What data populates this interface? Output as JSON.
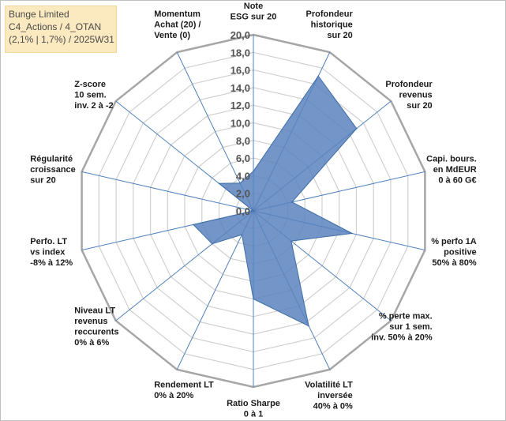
{
  "info": {
    "line1": "Bunge Limited",
    "line2": "C4_Actions / 4_OTAN",
    "line3": "(2,1% | 1,7%) / 2025W31"
  },
  "chart_data": {
    "type": "radar",
    "rmin": 0,
    "rmax": 20,
    "ticks": [
      "0,0",
      "2,0",
      "4,0",
      "6,0",
      "8,0",
      "10,0",
      "12,0",
      "14,0",
      "16,0",
      "18,0",
      "20,0"
    ],
    "axes": [
      [
        "Note",
        "ESG sur 20"
      ],
      [
        "Profondeur",
        "historique",
        "sur 20"
      ],
      [
        "Profondeur",
        "revenus",
        "sur 20"
      ],
      [
        "Capi. bours.",
        "en MdEUR",
        "0 à 60 G€"
      ],
      [
        "% perfo 1A",
        "positive",
        "50% à 80%"
      ],
      [
        "% perte max.",
        "sur 1 sem.",
        "inv. 50% à 20%"
      ],
      [
        "Volatilité LT",
        "inversée",
        "40% à 0%"
      ],
      [
        "Ratio Sharpe",
        "0 à 1"
      ],
      [
        "Rendement LT",
        "0% à 20%"
      ],
      [
        "Niveau LT",
        "revenus",
        "reccurents",
        "0% à 6%"
      ],
      [
        "Perfo. LT",
        "vs index",
        "-8% à 12%"
      ],
      [
        "Régularité",
        "croissance",
        "sur 20"
      ],
      [
        "Z-score",
        "10 sem.",
        "inv. 2 à -2"
      ],
      [
        "Momentum",
        "Achat (20) /",
        "Vente (0)"
      ]
    ],
    "series": [
      {
        "values": [
          4.5,
          17.0,
          15.0,
          4.5,
          11.5,
          5.5,
          14.5,
          10.0,
          3.0,
          6.0,
          7.0,
          0.0,
          5.0,
          3.5
        ],
        "color": "#5b83bd",
        "stroke": "#3f6ea8"
      }
    ],
    "grid": true
  }
}
